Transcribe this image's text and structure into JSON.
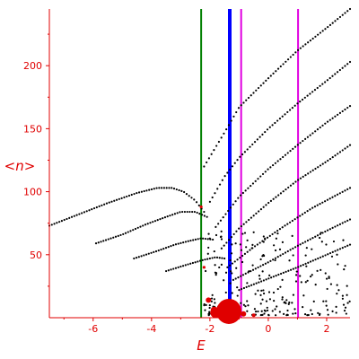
{
  "chart_data": {
    "type": "scatter",
    "title": "",
    "xlabel": "E",
    "ylabel": "<n>",
    "xlim": [
      -7.5,
      2.8
    ],
    "ylim": [
      0,
      245
    ],
    "x_ticks": [
      "-6",
      "-4",
      "-2",
      "0",
      "2"
    ],
    "x_tick_values": [
      -6,
      -4,
      -2,
      0,
      2
    ],
    "y_ticks": [
      "50",
      "100",
      "150",
      "200"
    ],
    "y_tick_values": [
      50,
      100,
      150,
      200
    ],
    "grid": false,
    "colors": {
      "axis": "#e00000",
      "points": "#000000",
      "highlight": "#e00000"
    },
    "vertical_lines": [
      {
        "x": -2.3,
        "color": "#008000"
      },
      {
        "x": -1.32,
        "color": "#0000ff"
      },
      {
        "x": -0.93,
        "color": "#e000e0"
      },
      {
        "x": 1.02,
        "color": "#e000e0"
      }
    ],
    "branches": [
      {
        "name": "",
        "x_start": -7.5,
        "x_end": -2.2,
        "points": [
          [
            -7.5,
            73
          ],
          [
            -6.5,
            82
          ],
          [
            -5.5,
            91
          ],
          [
            -4.5,
            99
          ],
          [
            -3.8,
            103
          ],
          [
            -3.3,
            103
          ],
          [
            -2.9,
            100
          ],
          [
            -2.5,
            93
          ],
          [
            -2.2,
            84
          ]
        ]
      },
      {
        "name": "",
        "x_start": -5.9,
        "x_end": -2.1,
        "points": [
          [
            -5.9,
            59
          ],
          [
            -5,
            66
          ],
          [
            -4.2,
            74
          ],
          [
            -3.5,
            80
          ],
          [
            -3,
            84
          ],
          [
            -2.5,
            84
          ],
          [
            -2.1,
            80
          ]
        ]
      },
      {
        "name": "",
        "x_start": -4.6,
        "x_end": -1.9,
        "points": [
          [
            -4.6,
            47
          ],
          [
            -3.8,
            53
          ],
          [
            -3.2,
            58
          ],
          [
            -2.7,
            61
          ],
          [
            -2.3,
            63
          ],
          [
            -1.9,
            62
          ]
        ]
      },
      {
        "name": "",
        "x_start": -3.5,
        "x_end": -1.5,
        "points": [
          [
            -3.5,
            37
          ],
          [
            -2.8,
            42
          ],
          [
            -2.2,
            46
          ],
          [
            -1.8,
            48
          ],
          [
            -1.5,
            47
          ]
        ]
      },
      {
        "name": "",
        "x_start": -2.2,
        "x_end": 2.8,
        "points": [
          [
            -2.2,
            120
          ],
          [
            -1.5,
            147
          ],
          [
            -1,
            167
          ],
          [
            0,
            190
          ],
          [
            1,
            212
          ],
          [
            2,
            230
          ],
          [
            2.8,
            245
          ]
        ]
      },
      {
        "name": "",
        "x_start": -2,
        "x_end": 2.8,
        "points": [
          [
            -2,
            92
          ],
          [
            -1.5,
            112
          ],
          [
            -1,
            127
          ],
          [
            0,
            150
          ],
          [
            1,
            170
          ],
          [
            2,
            188
          ],
          [
            2.8,
            203
          ]
        ]
      },
      {
        "name": "",
        "x_start": -1.8,
        "x_end": 2.8,
        "points": [
          [
            -1.8,
            72
          ],
          [
            -1,
            96
          ],
          [
            0,
            118
          ],
          [
            1,
            137
          ],
          [
            2,
            155
          ],
          [
            2.8,
            168
          ]
        ]
      },
      {
        "name": "",
        "x_start": -1.6,
        "x_end": 2.8,
        "points": [
          [
            -1.6,
            55
          ],
          [
            -1,
            71
          ],
          [
            0,
            91
          ],
          [
            1,
            109
          ],
          [
            2,
            124
          ],
          [
            2.8,
            137
          ]
        ]
      },
      {
        "name": "",
        "x_start": -1.4,
        "x_end": 2.8,
        "points": [
          [
            -1.4,
            40
          ],
          [
            -0.5,
            56
          ],
          [
            0.5,
            72
          ],
          [
            1.5,
            87
          ],
          [
            2.8,
            103
          ]
        ]
      },
      {
        "name": "",
        "x_start": -1.2,
        "x_end": 2.8,
        "points": [
          [
            -1.2,
            30
          ],
          [
            0,
            44
          ],
          [
            1,
            57
          ],
          [
            2,
            69
          ],
          [
            2.8,
            78
          ]
        ]
      },
      {
        "name": "",
        "x_start": -1,
        "x_end": 2.8,
        "points": [
          [
            -1,
            22
          ],
          [
            0,
            31
          ],
          [
            1,
            40
          ],
          [
            2,
            50
          ],
          [
            2.8,
            58
          ]
        ]
      }
    ],
    "scatter_cloud": {
      "x_range": [
        -2.2,
        2.8
      ],
      "y_range": [
        2,
        70
      ],
      "count": 220
    },
    "highlight_points": [
      {
        "x": -1.35,
        "y": 5,
        "r": 14
      },
      {
        "x": -1.8,
        "y": 4,
        "r": 6
      },
      {
        "x": -2.05,
        "y": 14,
        "r": 3
      },
      {
        "x": -1.85,
        "y": 6,
        "r": 4
      },
      {
        "x": -0.85,
        "y": 3,
        "r": 3
      },
      {
        "x": -0.5,
        "y": 2,
        "r": 2
      },
      {
        "x": -2.2,
        "y": 40,
        "r": 1.6
      },
      {
        "x": -2.3,
        "y": 88,
        "r": 1.6
      },
      {
        "x": -1.9,
        "y": 4,
        "r": 3
      }
    ]
  }
}
